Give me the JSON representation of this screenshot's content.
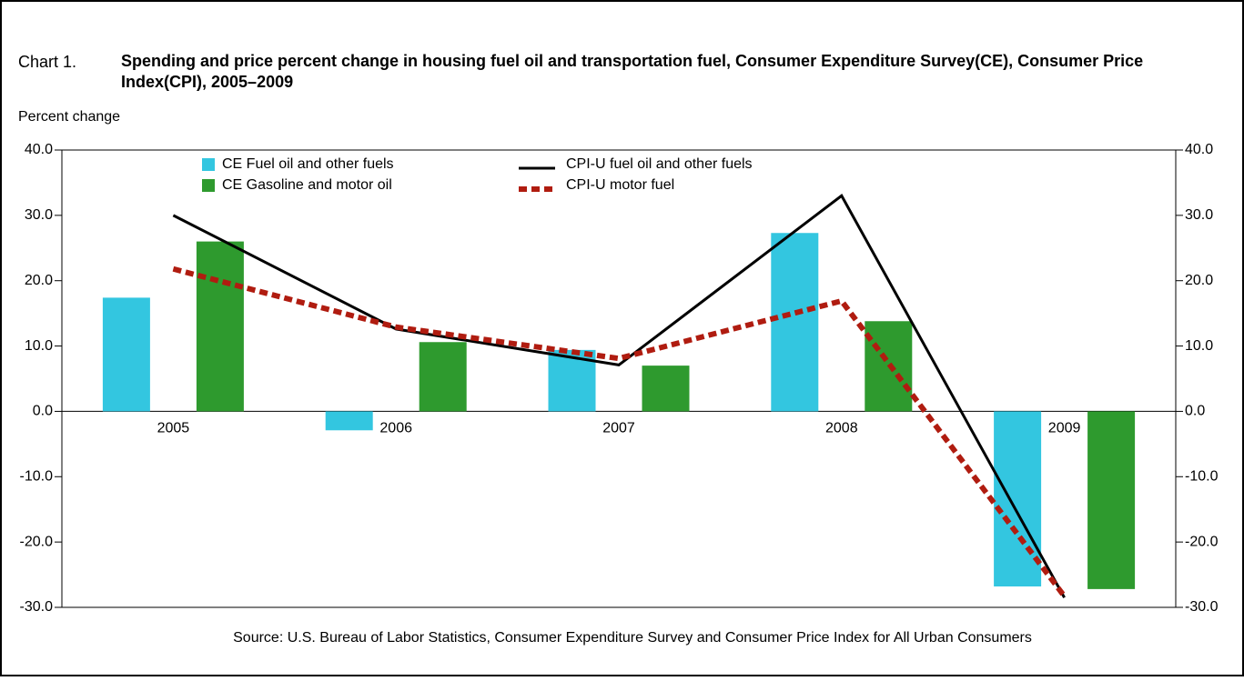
{
  "chart_data": {
    "type": "bar-line",
    "label": "Chart 1.",
    "title": "Spending and price percent change in housing fuel oil and transportation fuel, Consumer Expenditure Survey(CE), Consumer Price Index(CPI), 2005–2009",
    "y_label": "Percent change",
    "source": "Source: U.S. Bureau of Labor Statistics, Consumer Expenditure Survey and Consumer Price Index for All Urban Consumers",
    "categories": [
      "2005",
      "2006",
      "2007",
      "2008",
      "2009"
    ],
    "series": [
      {
        "name": "CE Fuel oil and other fuels",
        "type": "bar",
        "color": "#33c6e0",
        "values": [
          17.4,
          -2.9,
          9.4,
          27.3,
          -26.8
        ]
      },
      {
        "name": "CE Gasoline and motor oil",
        "type": "bar",
        "color": "#2e9a2e",
        "values": [
          26.0,
          10.6,
          7.0,
          13.8,
          -27.2
        ]
      },
      {
        "name": "CPI-U fuel oil and other fuels",
        "type": "line",
        "color": "#000000",
        "dashed": false,
        "values": [
          30.0,
          12.6,
          7.1,
          33.0,
          -28.5
        ]
      },
      {
        "name": "CPI-U motor fuel",
        "type": "line",
        "color": "#b01c10",
        "dashed": true,
        "values": [
          21.8,
          12.9,
          8.1,
          16.9,
          -28.3
        ]
      }
    ],
    "ylim": [
      -30,
      40
    ],
    "yticks": [
      {
        "value": -30,
        "label": "-30.0"
      },
      {
        "value": -20,
        "label": "-20.0"
      },
      {
        "value": -10,
        "label": "-10.0"
      },
      {
        "value": 0,
        "label": "0.0"
      },
      {
        "value": 10,
        "label": "10.0"
      },
      {
        "value": 20,
        "label": "20.0"
      },
      {
        "value": 30,
        "label": "30.0"
      },
      {
        "value": 40,
        "label": "40.0"
      }
    ]
  }
}
